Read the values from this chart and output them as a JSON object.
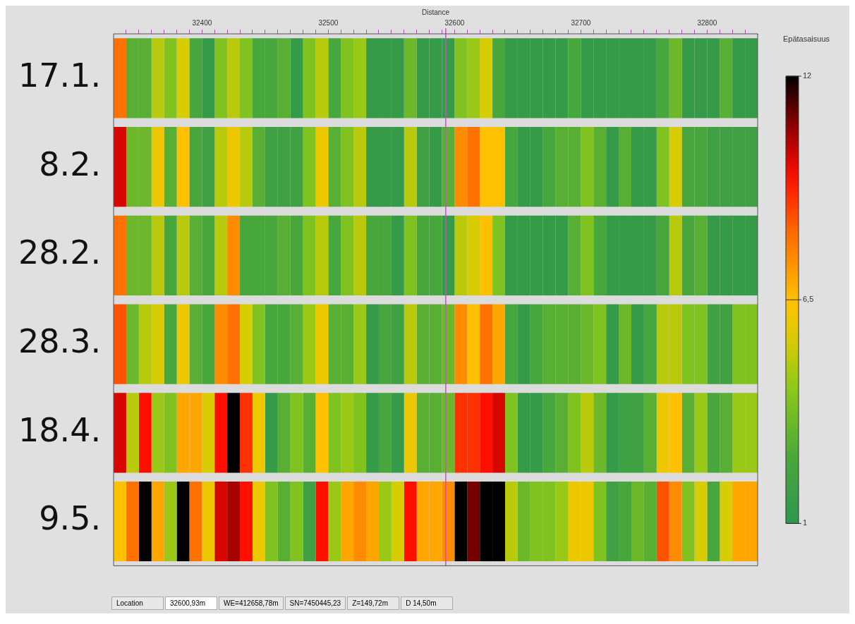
{
  "chart_data": {
    "type": "heatmap",
    "xlabel": "Distance",
    "clabel": "Epätasaisuus",
    "x": [
      32335,
      32345,
      32355,
      32365,
      32375,
      32385,
      32395,
      32405,
      32415,
      32425,
      32435,
      32445,
      32455,
      32465,
      32475,
      32485,
      32495,
      32505,
      32515,
      32525,
      32535,
      32545,
      32555,
      32565,
      32575,
      32585,
      32595,
      32605,
      32615,
      32625,
      32635,
      32645,
      32655,
      32665,
      32675,
      32685,
      32695,
      32705,
      32715,
      32725,
      32735,
      32745,
      32755,
      32765,
      32775,
      32785,
      32795,
      32805,
      32815,
      32825,
      32835
    ],
    "y_categories": [
      "17.1.",
      "8.2.",
      "28.2.",
      "28.3.",
      "18.4.",
      "9.5."
    ],
    "cells": [
      [
        8,
        3,
        3,
        5,
        4,
        5.5,
        2.5,
        1.5,
        4,
        5,
        4,
        2.5,
        2.5,
        3,
        1.5,
        4,
        5,
        2.5,
        4,
        4.5,
        1.5,
        1.5,
        1.5,
        3.5,
        1.5,
        1.5,
        1.5,
        4,
        4.5,
        5.5,
        2.5,
        1.5,
        1.5,
        1.5,
        1.5,
        1.5,
        2.5,
        1.5,
        1.5,
        1.5,
        1.5,
        1.5,
        1.5,
        2.5,
        3.5,
        1.5,
        1.5,
        1.5,
        3,
        1.5,
        1.5
      ],
      [
        10,
        3.5,
        3.5,
        6,
        3,
        6.5,
        2.5,
        2,
        5,
        6,
        5,
        3,
        2,
        2,
        2,
        4,
        6,
        3,
        4,
        5,
        1.5,
        1.5,
        1.5,
        5,
        2,
        1.5,
        3,
        7.5,
        8,
        6.5,
        6.5,
        2.5,
        1.5,
        1.5,
        2.5,
        3,
        3,
        4,
        3,
        1.5,
        3,
        1.5,
        1.5,
        4,
        5.5,
        2.5,
        2.5,
        2,
        2,
        2,
        2
      ],
      [
        8,
        3.5,
        3.5,
        5,
        2.5,
        5,
        3,
        2.5,
        5,
        7.5,
        2.5,
        2.5,
        2.5,
        3,
        2.5,
        4,
        5,
        2.5,
        4,
        5,
        2.5,
        2.5,
        1.5,
        4,
        2.5,
        2.5,
        1.5,
        5,
        5.5,
        6.5,
        4,
        1.5,
        1.5,
        1.5,
        1.5,
        1.5,
        3,
        4,
        2.5,
        1.5,
        1.5,
        1.5,
        1.5,
        2.5,
        5,
        2.5,
        3,
        1.5,
        1.5,
        1.5,
        1.5
      ],
      [
        8.5,
        3.5,
        5,
        5.5,
        2.5,
        6,
        3,
        2.5,
        7.5,
        8,
        5.5,
        4,
        2.5,
        2.5,
        3,
        4.5,
        6,
        3,
        3,
        4.5,
        1.5,
        2.5,
        2,
        5,
        3,
        3,
        3.5,
        7.5,
        6.5,
        8,
        7,
        2.5,
        1.5,
        2.5,
        3,
        3,
        3,
        3.5,
        4,
        1.5,
        3.5,
        1.5,
        2.5,
        5,
        5,
        4,
        4,
        2,
        2,
        4,
        4
      ],
      [
        10,
        5,
        9.5,
        4.5,
        4,
        7,
        7,
        5.5,
        9.5,
        12,
        9,
        6,
        1.5,
        3,
        4,
        3,
        6.5,
        4,
        4.5,
        4,
        1.5,
        2.5,
        1.5,
        6,
        3,
        3,
        3.5,
        9,
        9,
        9.5,
        10,
        4,
        1.5,
        1.5,
        2.5,
        3,
        4,
        5,
        3.5,
        1.5,
        2,
        2,
        3,
        6,
        6.5,
        3,
        4.5,
        2.5,
        3,
        4.5,
        4.5
      ],
      [
        6.5,
        8,
        12,
        7,
        4.5,
        12,
        8,
        6,
        10,
        10.5,
        9.5,
        6,
        4,
        3,
        4,
        2,
        9.5,
        4.5,
        7,
        7.5,
        7,
        4.5,
        5.5,
        9.5,
        7,
        7,
        7.5,
        12,
        11,
        12,
        12,
        5,
        3.5,
        4,
        4,
        4.5,
        6,
        6,
        4,
        2,
        2.5,
        3.5,
        3,
        8.5,
        7.5,
        4,
        5.5,
        2.5,
        5.5,
        7,
        7
      ]
    ],
    "xlim": [
      32330,
      32840
    ],
    "xticks": [
      {
        "value": 32340,
        "label": null
      },
      {
        "value": 32350,
        "label": null
      },
      {
        "value": 32360,
        "label": null
      },
      {
        "value": 32370,
        "label": null
      },
      {
        "value": 32380,
        "label": null
      },
      {
        "value": 32390,
        "label": null
      },
      32400,
      {
        "value": 32410,
        "label": null
      },
      {
        "value": 32420,
        "label": null
      },
      {
        "value": 32430,
        "label": null
      },
      {
        "value": 32440,
        "label": null
      },
      {
        "value": 32450,
        "label": null
      },
      {
        "value": 32460,
        "label": null
      },
      {
        "value": 32470,
        "label": null
      },
      {
        "value": 32480,
        "label": null
      },
      {
        "value": 32490,
        "label": null
      },
      32500,
      {
        "value": 32510,
        "label": null
      },
      {
        "value": 32520,
        "label": null
      },
      {
        "value": 32530,
        "label": null
      },
      {
        "value": 32540,
        "label": null
      },
      {
        "value": 32550,
        "label": null
      },
      {
        "value": 32560,
        "label": null
      },
      {
        "value": 32570,
        "label": null
      },
      {
        "value": 32580,
        "label": null
      },
      {
        "value": 32590,
        "label": null
      },
      32600,
      {
        "value": 32610,
        "label": null
      },
      {
        "value": 32620,
        "label": null
      },
      {
        "value": 32630,
        "label": null
      },
      {
        "value": 32640,
        "label": null
      },
      {
        "value": 32650,
        "label": null
      },
      {
        "value": 32660,
        "label": null
      },
      {
        "value": 32670,
        "label": null
      },
      {
        "value": 32680,
        "label": null
      },
      {
        "value": 32690,
        "label": null
      },
      32700,
      {
        "value": 32710,
        "label": null
      },
      {
        "value": 32720,
        "label": null
      },
      {
        "value": 32730,
        "label": null
      },
      {
        "value": 32740,
        "label": null
      },
      {
        "value": 32750,
        "label": null
      },
      {
        "value": 32760,
        "label": null
      },
      {
        "value": 32770,
        "label": null
      },
      {
        "value": 32780,
        "label": null
      },
      {
        "value": 32790,
        "label": null
      },
      32800,
      {
        "value": 32810,
        "label": null
      },
      {
        "value": 32820,
        "label": null
      },
      {
        "value": 32830,
        "label": null
      }
    ],
    "clim": [
      1,
      12
    ],
    "cticks": [
      12,
      {
        "value": 6.5,
        "label": "6,5"
      },
      1
    ],
    "ref_lines": [
      {
        "axis": "x",
        "value": 32593,
        "color": "#e040e0"
      }
    ],
    "annotations": [
      "Location",
      "32600,93m",
      "WE=412658,78m",
      "SN=7450445,23",
      "Z=149,72m",
      "D 14,50m"
    ]
  }
}
